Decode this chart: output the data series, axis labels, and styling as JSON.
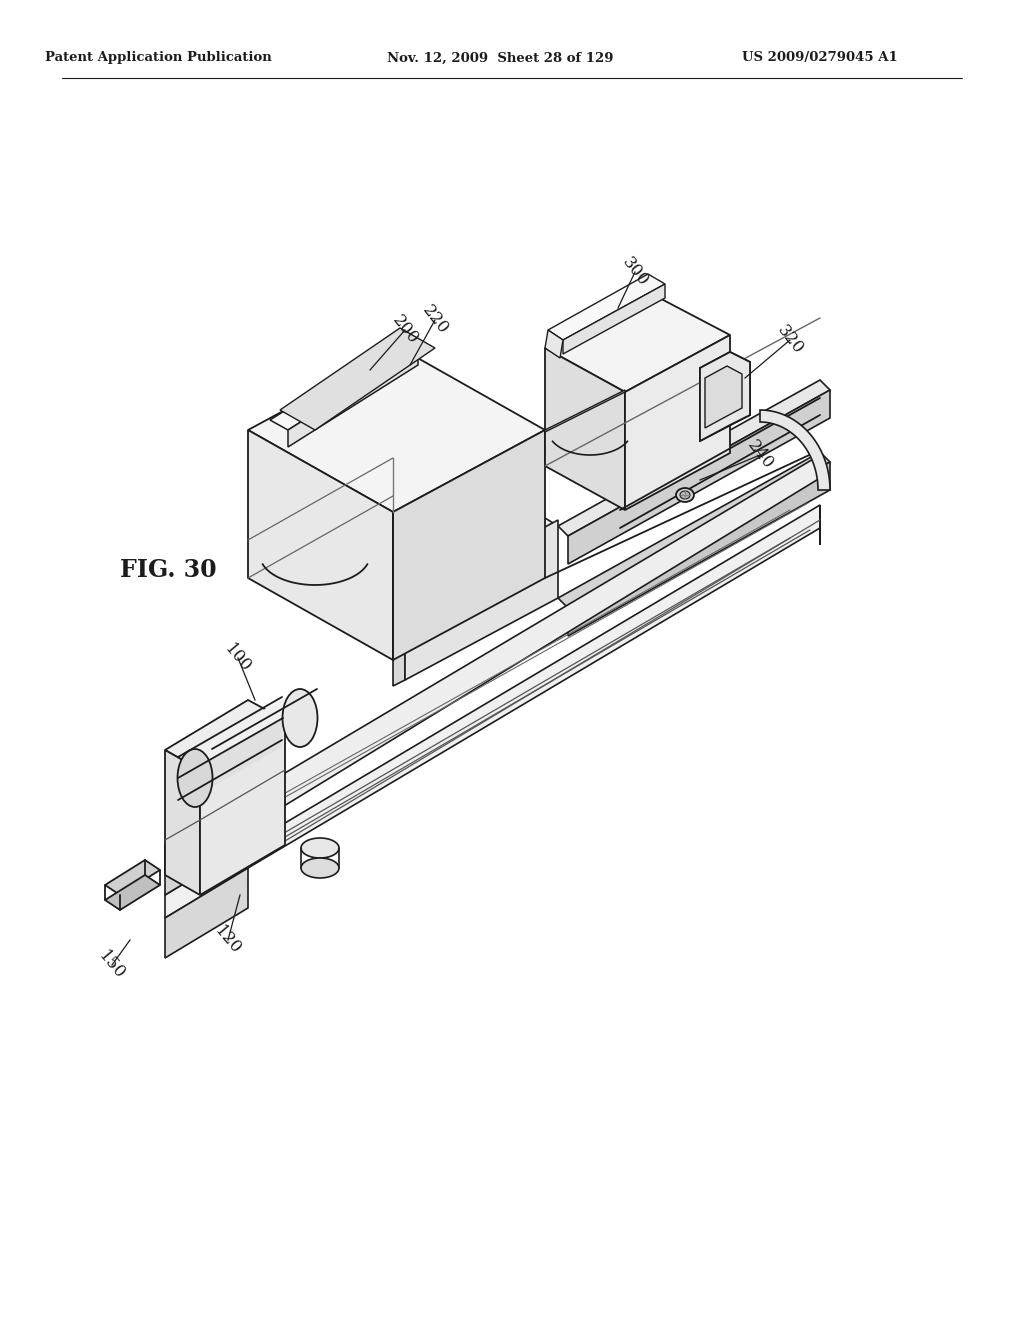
{
  "header_left": "Patent Application Publication",
  "header_mid": "Nov. 12, 2009  Sheet 28 of 129",
  "header_right": "US 2009/0279045 A1",
  "fig_label": "FIG. 30",
  "bg_color": "#ffffff",
  "lc": "#1c1c1c",
  "fig_width": 10.24,
  "fig_height": 13.2,
  "dpi": 100
}
